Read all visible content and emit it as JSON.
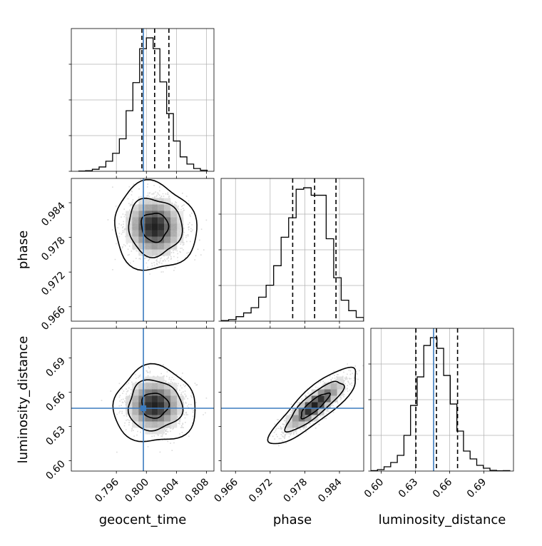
{
  "chart_data": {
    "type": "corner",
    "colors": {
      "truth": "#3b7bbf",
      "hist": "#000000",
      "grid": "#b0b0b0",
      "points": "#555555",
      "density_dark": "#000000"
    },
    "parameters": [
      {
        "key": "geocent_time",
        "label": "geocent_time",
        "range": [
          0.79,
          0.809
        ],
        "ticks": [
          "0.796",
          "0.800",
          "0.804",
          "0.808"
        ],
        "truth": 0.7996,
        "quantiles": [
          0.7994,
          0.8011,
          0.803
        ],
        "hist": {
          "start": 0.791,
          "width": 0.0009,
          "counts": [
            0.2,
            0.4,
            1.4,
            3.0,
            7.0,
            12.5,
            22.5,
            42.0,
            61.5,
            85.0,
            92.5,
            85.0,
            62.0,
            40.0,
            21.0,
            10.0,
            5.0,
            1.9,
            0.7
          ]
        }
      },
      {
        "key": "phase",
        "label": "phase",
        "range": [
          0.9635,
          0.9882
        ],
        "ticks": [
          "0.966",
          "0.972",
          "0.978",
          "0.984"
        ],
        "truth": null,
        "quantiles": [
          0.9759,
          0.9797,
          0.9834
        ],
        "hist": {
          "start": 0.9635,
          "width": 0.0013,
          "counts": [
            0.4,
            1.0,
            3.0,
            5.5,
            9.0,
            16.0,
            24.0,
            37.0,
            56.0,
            69.0,
            88.0,
            89.0,
            84.0,
            84.0,
            55.0,
            29.0,
            14.0,
            7.0,
            2.5
          ]
        }
      },
      {
        "key": "luminosity_distance",
        "label": "luminosity_distance",
        "range": [
          0.591,
          0.716
        ],
        "ticks": [
          "0.60",
          "0.63",
          "0.66",
          "0.69"
        ],
        "truth": 0.646,
        "quantiles": [
          0.6305,
          0.6485,
          0.667
        ],
        "hist": {
          "start": 0.591,
          "width": 0.0058,
          "counts": [
            0.3,
            1.0,
            3.0,
            6.0,
            11.0,
            25.0,
            46.0,
            66.0,
            88.0,
            93.5,
            86.0,
            67.0,
            47.0,
            28.0,
            14.0,
            8.5,
            4.0,
            2.0,
            0.5,
            0.2,
            0.3
          ]
        }
      }
    ],
    "pairs": [
      {
        "x": "geocent_time",
        "y": "phase",
        "mean": [
          0.8011,
          0.9798
        ],
        "sd": [
          0.0018,
          0.0025
        ],
        "rho": -0.05,
        "levels": [
          0.39,
          0.86,
          0.99
        ]
      },
      {
        "x": "geocent_time",
        "y": "luminosity_distance",
        "mean": [
          0.8011,
          0.6485
        ],
        "sd": [
          0.0018,
          0.011
        ],
        "rho": 0.0,
        "levels": [
          0.39,
          0.86,
          0.99
        ]
      },
      {
        "x": "phase",
        "y": "luminosity_distance",
        "mean": [
          0.9797,
          0.6485
        ],
        "sd": [
          0.0025,
          0.011
        ],
        "rho": 0.85,
        "levels": [
          0.39,
          0.86,
          0.99
        ]
      }
    ]
  }
}
